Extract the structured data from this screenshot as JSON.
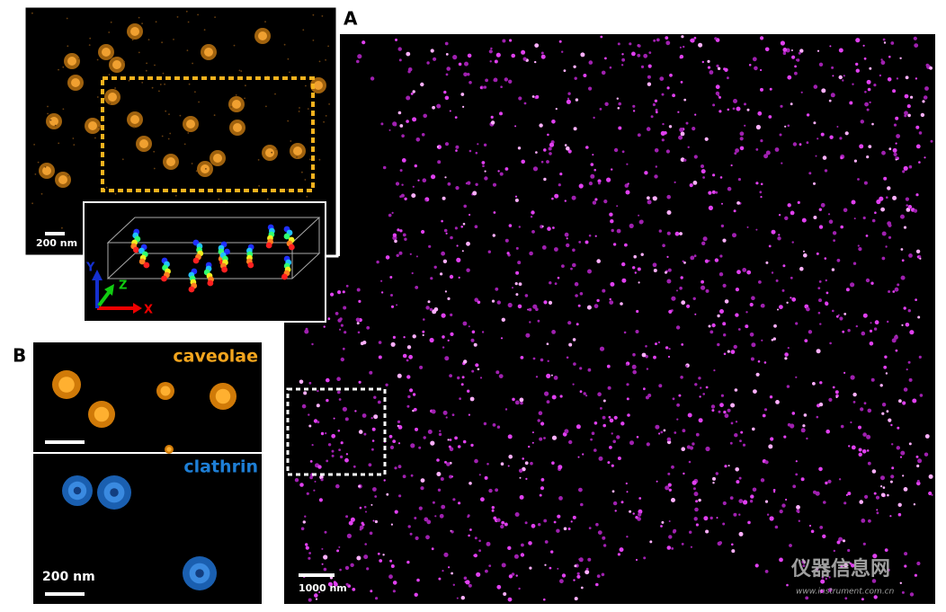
{
  "panel_a": {
    "label": "A",
    "scale_bar": "1000 nm",
    "inset": {
      "scale_bar": "200 nm",
      "axes": {
        "x": "X",
        "y": "Y",
        "z": "Z"
      }
    }
  },
  "panel_b": {
    "label": "B",
    "top": {
      "label": "caveolae"
    },
    "bottom": {
      "label": "clathrin",
      "scale_bar": "200 nm"
    }
  },
  "watermark": {
    "name": "仪器信息网",
    "url": "www.instrument.com.cn"
  }
}
